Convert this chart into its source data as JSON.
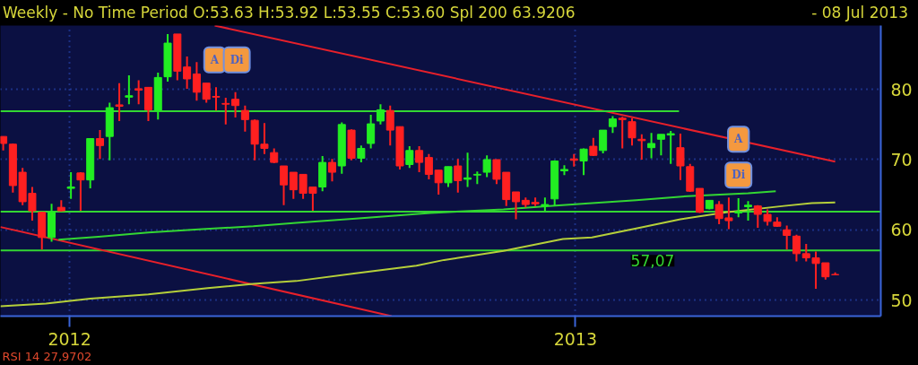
{
  "chart_data": {
    "type": "candlestick",
    "title": "Weekly - No Time Period O:53.63 H:53.92 L:53.55 C:53.60 Spl 200 63.9206",
    "subtitle": "- 08 Jul 2013",
    "x": [
      "2011-11-14",
      "2011-11-21",
      "2011-11-28",
      "2011-12-05",
      "2011-12-12",
      "2011-12-19",
      "2011-12-26",
      "2012-01-02",
      "2012-01-09",
      "2012-01-16",
      "2012-01-23",
      "2012-01-30",
      "2012-02-06",
      "2012-02-13",
      "2012-02-20",
      "2012-02-27",
      "2012-03-05",
      "2012-03-12",
      "2012-03-19",
      "2012-03-26",
      "2012-04-02",
      "2012-04-09",
      "2012-04-16",
      "2012-04-23",
      "2012-04-30",
      "2012-05-07",
      "2012-05-14",
      "2012-05-21",
      "2012-05-28",
      "2012-06-04",
      "2012-06-11",
      "2012-06-18",
      "2012-06-25",
      "2012-07-02",
      "2012-07-09",
      "2012-07-16",
      "2012-07-23",
      "2012-07-30",
      "2012-08-06",
      "2012-08-13",
      "2012-08-20",
      "2012-08-27",
      "2012-09-03",
      "2012-09-10",
      "2012-09-17",
      "2012-09-24",
      "2012-10-01",
      "2012-10-08",
      "2012-10-15",
      "2012-10-22",
      "2012-10-29",
      "2012-11-05",
      "2012-11-12",
      "2012-11-19",
      "2012-11-26",
      "2012-12-03",
      "2012-12-10",
      "2012-12-17",
      "2012-12-24",
      "2012-12-31",
      "2013-01-07",
      "2013-01-14",
      "2013-01-21",
      "2013-01-28",
      "2013-02-04",
      "2013-02-11",
      "2013-02-18",
      "2013-02-25",
      "2013-03-04",
      "2013-03-11",
      "2013-03-18",
      "2013-03-25",
      "2013-04-01",
      "2013-04-08",
      "2013-04-15",
      "2013-04-22",
      "2013-04-29",
      "2013-05-06",
      "2013-05-13",
      "2013-05-20",
      "2013-05-27",
      "2013-06-03",
      "2013-06-10",
      "2013-06-17",
      "2013-06-24",
      "2013-07-01",
      "2013-07-08"
    ],
    "ohlc": [
      [
        73.3,
        73.3,
        71.3,
        72.3
      ],
      [
        72.2,
        72.3,
        65.3,
        66.3
      ],
      [
        68.2,
        68.8,
        63.5,
        64.0
      ],
      [
        65.2,
        66.1,
        61.3,
        62.7
      ],
      [
        62.5,
        62.5,
        57.2,
        58.9
      ],
      [
        58.9,
        63.7,
        58.3,
        62.5
      ],
      [
        63.2,
        64.2,
        62.6,
        62.7
      ],
      [
        65.9,
        68.2,
        64.4,
        66.1
      ],
      [
        68.1,
        68.2,
        62.7,
        67.1
      ],
      [
        67.1,
        73.0,
        65.9,
        73.0
      ],
      [
        73.0,
        74.2,
        70.1,
        72.0
      ],
      [
        73.3,
        78.1,
        69.9,
        77.4
      ],
      [
        77.8,
        80.9,
        75.5,
        77.6
      ],
      [
        78.9,
        82.0,
        77.9,
        79.1
      ],
      [
        80.1,
        81.3,
        77.9,
        79.9
      ],
      [
        80.3,
        80.3,
        75.5,
        77.1
      ],
      [
        77.0,
        82.4,
        75.7,
        81.7
      ],
      [
        81.8,
        87.9,
        81.1,
        86.6
      ],
      [
        87.9,
        87.9,
        81.3,
        82.6
      ],
      [
        83.2,
        84.7,
        80.1,
        81.5
      ],
      [
        82.2,
        83.9,
        78.4,
        79.6
      ],
      [
        80.9,
        80.9,
        78.1,
        78.6
      ],
      [
        79.0,
        80.3,
        77.0,
        78.9
      ],
      [
        78.0,
        78.8,
        75.0,
        77.9
      ],
      [
        78.6,
        79.6,
        76.0,
        77.7
      ],
      [
        77.0,
        77.7,
        74.0,
        75.7
      ],
      [
        75.6,
        75.7,
        69.9,
        72.2
      ],
      [
        72.2,
        75.2,
        70.8,
        71.6
      ],
      [
        71.0,
        71.6,
        69.5,
        69.6
      ],
      [
        69.1,
        69.1,
        63.5,
        66.4
      ],
      [
        68.2,
        68.2,
        64.4,
        65.7
      ],
      [
        67.9,
        67.9,
        64.4,
        65.2
      ],
      [
        66.1,
        66.1,
        62.7,
        65.2
      ],
      [
        66.1,
        70.5,
        65.5,
        69.6
      ],
      [
        69.6,
        70.1,
        66.9,
        68.2
      ],
      [
        69.1,
        75.3,
        68.0,
        75.0
      ],
      [
        74.2,
        74.3,
        69.9,
        70.2
      ],
      [
        70.2,
        72.0,
        69.6,
        71.6
      ],
      [
        72.3,
        76.4,
        71.6,
        75.1
      ],
      [
        75.5,
        77.9,
        75.0,
        77.1
      ],
      [
        77.0,
        77.7,
        72.0,
        74.2
      ],
      [
        74.7,
        74.7,
        68.6,
        69.1
      ],
      [
        69.3,
        71.9,
        68.8,
        71.3
      ],
      [
        71.3,
        71.9,
        68.2,
        69.6
      ],
      [
        70.3,
        70.8,
        67.2,
        67.9
      ],
      [
        68.5,
        68.5,
        65.0,
        66.7
      ],
      [
        66.7,
        69.0,
        66.1,
        69.0
      ],
      [
        69.1,
        70.1,
        65.3,
        67.0
      ],
      [
        67.2,
        71.0,
        66.1,
        67.4
      ],
      [
        67.8,
        68.3,
        66.5,
        67.9
      ],
      [
        68.2,
        70.6,
        67.5,
        70.0
      ],
      [
        70.0,
        70.0,
        66.5,
        67.2
      ],
      [
        68.2,
        68.2,
        63.4,
        64.3
      ],
      [
        65.4,
        65.4,
        61.5,
        64.0
      ],
      [
        64.2,
        64.6,
        63.2,
        63.6
      ],
      [
        63.9,
        64.6,
        63.4,
        63.7
      ],
      [
        63.4,
        64.6,
        62.7,
        63.6
      ],
      [
        64.4,
        69.9,
        63.4,
        69.8
      ],
      [
        68.4,
        69.2,
        67.8,
        68.6
      ],
      [
        70.1,
        70.8,
        69.0,
        69.9
      ],
      [
        69.8,
        71.6,
        67.8,
        71.5
      ],
      [
        71.9,
        73.1,
        70.5,
        70.6
      ],
      [
        71.3,
        74.2,
        70.9,
        74.2
      ],
      [
        74.7,
        76.2,
        73.8,
        75.8
      ],
      [
        75.9,
        76.1,
        71.6,
        75.7
      ],
      [
        75.4,
        75.9,
        72.0,
        73.1
      ],
      [
        72.9,
        73.6,
        70.0,
        72.7
      ],
      [
        71.7,
        73.8,
        70.2,
        72.3
      ],
      [
        72.9,
        73.6,
        70.6,
        73.6
      ],
      [
        73.5,
        74.1,
        69.4,
        73.7
      ],
      [
        71.7,
        73.7,
        67.1,
        69.1
      ],
      [
        69.0,
        69.4,
        65.4,
        65.5
      ],
      [
        65.9,
        65.9,
        62.4,
        62.5
      ],
      [
        63.0,
        64.2,
        62.9,
        64.2
      ],
      [
        63.6,
        64.1,
        60.8,
        61.6
      ],
      [
        61.7,
        64.6,
        60.1,
        61.3
      ],
      [
        62.4,
        64.5,
        61.8,
        62.6
      ],
      [
        63.3,
        64.1,
        61.3,
        63.5
      ],
      [
        63.4,
        63.5,
        60.3,
        62.2
      ],
      [
        62.2,
        62.9,
        60.6,
        61.2
      ],
      [
        61.1,
        61.8,
        60.4,
        60.5
      ],
      [
        60.0,
        60.6,
        57.2,
        59.2
      ],
      [
        59.1,
        59.3,
        55.5,
        56.6
      ],
      [
        56.6,
        58.0,
        55.5,
        56.0
      ],
      [
        56.0,
        56.9,
        51.6,
        55.2
      ],
      [
        55.3,
        55.3,
        52.9,
        53.3
      ],
      [
        53.63,
        53.92,
        53.55,
        53.6
      ]
    ],
    "colors": [
      "#ff2020",
      "#ff2020",
      "#ff2020",
      "#ff2020",
      "#ff2020",
      "#22ee22",
      "#ff2020",
      "#22ee22",
      "#ff2020",
      "#22ee22",
      "#ff2020",
      "#22ee22",
      "#ff2020",
      "#22ee22",
      "#ff2020",
      "#ff2020",
      "#22ee22",
      "#22ee22",
      "#ff2020",
      "#ff2020",
      "#ff2020",
      "#ff2020",
      "#ff2020",
      "#ff2020",
      "#ff2020",
      "#ff2020",
      "#ff2020",
      "#ff2020",
      "#ff2020",
      "#ff2020",
      "#ff2020",
      "#ff2020",
      "#ff2020",
      "#22ee22",
      "#ff2020",
      "#22ee22",
      "#ff2020",
      "#22ee22",
      "#22ee22",
      "#22ee22",
      "#ff2020",
      "#ff2020",
      "#22ee22",
      "#ff2020",
      "#ff2020",
      "#ff2020",
      "#22ee22",
      "#ff2020",
      "#22ee22",
      "#22ee22",
      "#22ee22",
      "#ff2020",
      "#ff2020",
      "#ff2020",
      "#ff2020",
      "#ff2020",
      "#22ee22",
      "#22ee22",
      "#22ee22",
      "#ff2020",
      "#22ee22",
      "#ff2020",
      "#22ee22",
      "#22ee22",
      "#ff2020",
      "#ff2020",
      "#ff2020",
      "#22ee22",
      "#22ee22",
      "#22ee22",
      "#ff2020",
      "#ff2020",
      "#ff2020",
      "#22ee22",
      "#ff2020",
      "#ff2020",
      "#22ee22",
      "#22ee22",
      "#ff2020",
      "#ff2020",
      "#ff2020",
      "#ff2020",
      "#ff2020",
      "#ff2020",
      "#ff2020",
      "#ff2020",
      "#ff2020"
    ],
    "series": [
      {
        "type": "line",
        "color": "#e8202a",
        "x": [
          "2012-04-15",
          "2013-07-08"
        ],
        "values": [
          89.1,
          69.7
        ]
      },
      {
        "type": "line",
        "color": "#e8202a",
        "x": [
          "2011-11-12",
          "2012-08-21"
        ],
        "values": [
          60.4,
          47.7
        ]
      },
      {
        "type": "line",
        "color": "#33d633",
        "x": [
          "2011-11-12",
          "2013-03-17"
        ],
        "values": [
          76.9,
          76.9
        ]
      },
      {
        "type": "line",
        "color": "#33d633",
        "x": [
          "2011-12-24",
          "2012-01-22",
          "2012-02-27",
          "2012-04-06",
          "2012-05-13",
          "2012-06-13",
          "2012-07-26",
          "2012-09-18",
          "2012-11-10",
          "2012-12-13",
          "2013-01-13",
          "2013-02-14",
          "2013-03-23",
          "2013-05-06",
          "2013-05-26"
        ],
        "values": [
          58.6,
          59.0,
          59.6,
          60.1,
          60.5,
          61.0,
          61.6,
          62.4,
          62.9,
          63.4,
          63.8,
          64.2,
          64.8,
          65.2,
          65.5
        ]
      },
      {
        "type": "line",
        "color": "#b5cf3a",
        "x": [
          "2011-11-12",
          "2011-12-15",
          "2012-01-16",
          "2012-02-27",
          "2012-04-10",
          "2012-05-13",
          "2012-06-13",
          "2012-07-26",
          "2012-09-08",
          "2012-09-28",
          "2012-11-10",
          "2012-12-23",
          "2013-01-13",
          "2013-02-14",
          "2013-03-18",
          "2013-04-20",
          "2013-06-01",
          "2013-06-21",
          "2013-07-08"
        ],
        "values": [
          49.1,
          49.5,
          50.2,
          50.8,
          51.7,
          52.3,
          52.7,
          53.8,
          54.9,
          55.7,
          57.0,
          58.7,
          58.9,
          60.2,
          61.5,
          62.5,
          63.4,
          63.8,
          63.9
        ]
      }
    ],
    "ref_lines": [
      {
        "axis": "y",
        "value": 62.6,
        "color": "#33d633"
      },
      {
        "axis": "y",
        "value": 57.07,
        "label": "57,07",
        "color": "#33d633"
      }
    ],
    "annotations": [
      {
        "text": "A",
        "x": "2012-04-15",
        "y": 84.2
      },
      {
        "text": "Di",
        "x": "2012-05-01",
        "y": 84.2
      },
      {
        "text": "A",
        "x": "2013-04-29",
        "y": 72.9
      },
      {
        "text": "Di",
        "x": "2013-04-29",
        "y": 67.8
      },
      "RSI 14 27,9702"
    ],
    "xlim": [
      "2011-11-12",
      "2013-08-10"
    ],
    "xticks": [
      "2012",
      "2013"
    ],
    "ylim": [
      47.7,
      89.1
    ],
    "yticks": [
      50,
      60,
      70,
      80
    ],
    "grid": true
  }
}
